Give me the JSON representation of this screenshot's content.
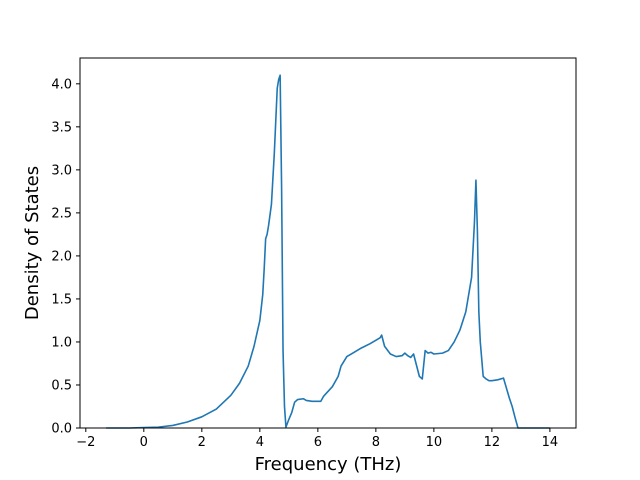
{
  "chart_data": {
    "type": "line",
    "title": "",
    "xlabel": "Frequency (THz)",
    "ylabel": "Density of States",
    "xlim": [
      -2.2,
      14.9
    ],
    "ylim": [
      0.0,
      4.3
    ],
    "xticks": [
      -2,
      0,
      2,
      4,
      6,
      8,
      10,
      12,
      14
    ],
    "xtick_labels": [
      "−2",
      "0",
      "2",
      "4",
      "6",
      "8",
      "10",
      "12",
      "14"
    ],
    "yticks": [
      0.0,
      0.5,
      1.0,
      1.5,
      2.0,
      2.5,
      3.0,
      3.5,
      4.0
    ],
    "ytick_labels": [
      "0.0",
      "0.5",
      "1.0",
      "1.5",
      "2.0",
      "2.5",
      "3.0",
      "3.5",
      "4.0"
    ],
    "grid": false,
    "legend": "none",
    "series": [
      {
        "color": "#1f77b4",
        "x": [
          -1.3,
          -1.0,
          -0.5,
          0.0,
          0.5,
          1.0,
          1.5,
          2.0,
          2.5,
          3.0,
          3.3,
          3.6,
          3.8,
          4.0,
          4.1,
          4.15,
          4.2,
          4.25,
          4.3,
          4.4,
          4.5,
          4.6,
          4.65,
          4.7,
          4.75,
          4.8,
          4.85,
          4.9,
          5.0,
          5.1,
          5.2,
          5.3,
          5.5,
          5.6,
          5.8,
          6.1,
          6.2,
          6.5,
          6.7,
          6.8,
          7.0,
          7.2,
          7.5,
          7.8,
          8.1,
          8.15,
          8.2,
          8.3,
          8.5,
          8.7,
          8.9,
          9.0,
          9.1,
          9.2,
          9.3,
          9.5,
          9.6,
          9.7,
          9.8,
          9.9,
          10.0,
          10.3,
          10.5,
          10.7,
          10.9,
          11.1,
          11.3,
          11.4,
          11.45,
          11.5,
          11.55,
          11.6,
          11.7,
          11.8,
          11.9,
          12.0,
          12.2,
          12.4,
          12.6,
          12.7,
          12.8,
          12.9,
          13.0,
          14.0
        ],
        "y": [
          0.0,
          0.0,
          0.0,
          0.005,
          0.01,
          0.03,
          0.07,
          0.13,
          0.22,
          0.38,
          0.52,
          0.72,
          0.95,
          1.25,
          1.55,
          1.85,
          2.2,
          2.25,
          2.35,
          2.6,
          3.2,
          3.95,
          4.05,
          4.1,
          2.8,
          0.9,
          0.25,
          0.01,
          0.1,
          0.18,
          0.3,
          0.33,
          0.34,
          0.32,
          0.31,
          0.31,
          0.37,
          0.48,
          0.6,
          0.72,
          0.83,
          0.87,
          0.93,
          0.98,
          1.04,
          1.05,
          1.08,
          0.95,
          0.86,
          0.83,
          0.84,
          0.87,
          0.84,
          0.82,
          0.86,
          0.6,
          0.57,
          0.9,
          0.87,
          0.88,
          0.86,
          0.87,
          0.9,
          1.0,
          1.14,
          1.35,
          1.75,
          2.4,
          2.88,
          2.3,
          1.35,
          1.0,
          0.6,
          0.57,
          0.55,
          0.55,
          0.56,
          0.58,
          0.35,
          0.25,
          0.12,
          0.0,
          0.0,
          0.0
        ]
      }
    ]
  }
}
